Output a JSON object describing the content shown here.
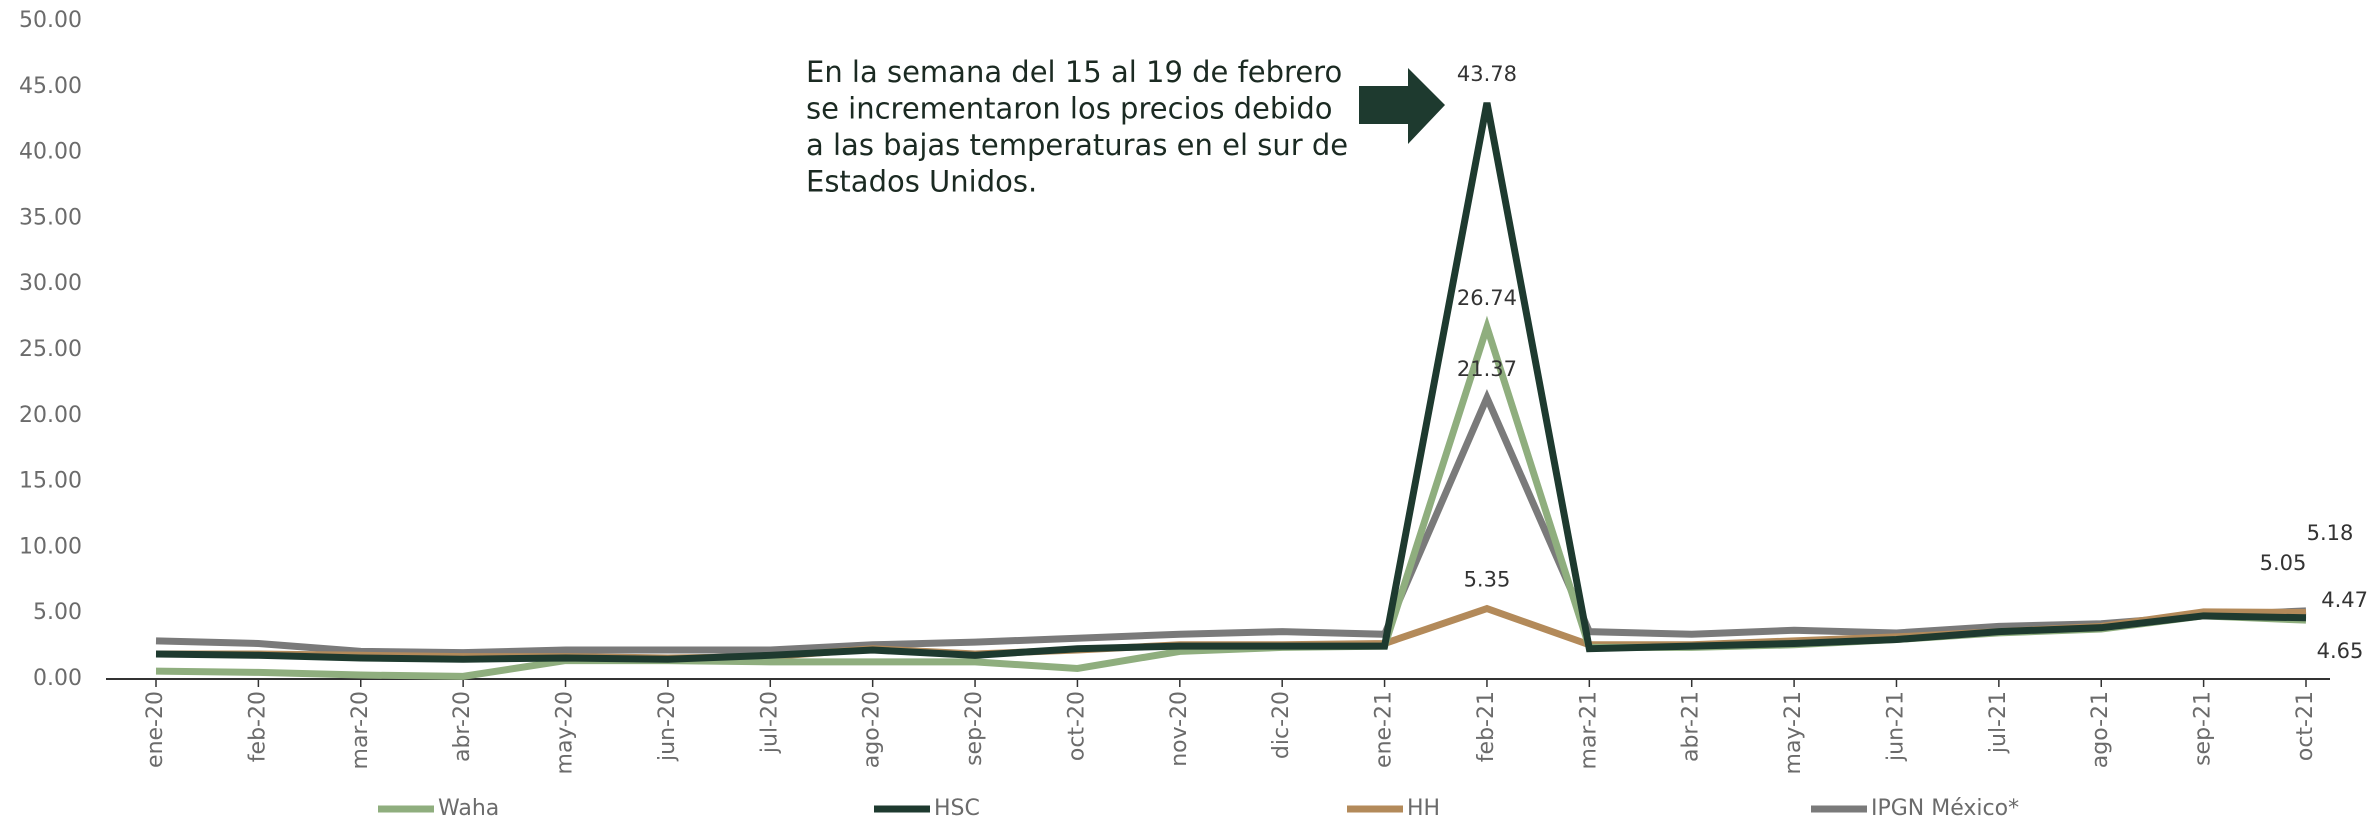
{
  "chart_data": {
    "type": "line",
    "categories": [
      "ene-20",
      "feb-20",
      "mar-20",
      "abr-20",
      "may-20",
      "jun-20",
      "jul-20",
      "ago-20",
      "sep-20",
      "oct-20",
      "nov-20",
      "dic-20",
      "ene-21",
      "feb-21",
      "mar-21",
      "abr-21",
      "may-21",
      "jun-21",
      "jul-21",
      "ago-21",
      "sep-21",
      "oct-21"
    ],
    "series": [
      {
        "name": "Waha",
        "color": "#8fae7e",
        "values": [
          0.6,
          0.5,
          0.3,
          0.2,
          1.4,
          1.4,
          1.3,
          1.3,
          1.3,
          0.8,
          2.1,
          2.4,
          2.5,
          26.74,
          2.4,
          2.4,
          2.6,
          3.0,
          3.5,
          3.8,
          4.8,
          4.47
        ],
        "value_labels": [
          null,
          null,
          null,
          null,
          null,
          null,
          null,
          null,
          null,
          null,
          null,
          null,
          null,
          "26.74",
          null,
          null,
          null,
          null,
          null,
          null,
          null,
          "4.47"
        ]
      },
      {
        "name": "HSC",
        "color": "#1e3a2f",
        "values": [
          1.9,
          1.8,
          1.6,
          1.5,
          1.6,
          1.5,
          1.8,
          2.2,
          1.8,
          2.3,
          2.5,
          2.5,
          2.5,
          43.78,
          2.3,
          2.5,
          2.7,
          3.0,
          3.6,
          3.9,
          4.8,
          4.65
        ],
        "value_labels": [
          null,
          null,
          null,
          null,
          null,
          null,
          null,
          null,
          null,
          null,
          null,
          null,
          null,
          "43.78",
          null,
          null,
          null,
          null,
          null,
          null,
          null,
          "4.65"
        ]
      },
      {
        "name": "HH",
        "color": "#b38a5a",
        "values": [
          1.9,
          1.9,
          1.8,
          1.7,
          1.7,
          1.6,
          1.7,
          2.3,
          1.9,
          2.2,
          2.6,
          2.6,
          2.7,
          5.35,
          2.6,
          2.6,
          2.9,
          3.2,
          3.6,
          4.0,
          5.1,
          5.05
        ],
        "value_labels": [
          null,
          null,
          null,
          null,
          null,
          null,
          null,
          null,
          null,
          null,
          null,
          null,
          null,
          "5.35",
          null,
          null,
          null,
          null,
          null,
          null,
          null,
          "5.05"
        ]
      },
      {
        "name": "IPGN México*",
        "color": "#7a7a7a",
        "values": [
          2.9,
          2.7,
          2.1,
          2.0,
          2.2,
          2.2,
          2.2,
          2.6,
          2.8,
          3.1,
          3.4,
          3.6,
          3.4,
          21.37,
          3.6,
          3.4,
          3.7,
          3.5,
          4.0,
          4.2,
          4.8,
          5.18
        ],
        "value_labels": [
          null,
          null,
          null,
          null,
          null,
          null,
          null,
          null,
          null,
          null,
          null,
          null,
          null,
          "21.37",
          null,
          null,
          null,
          null,
          null,
          null,
          null,
          "5.18"
        ]
      }
    ],
    "ylim": [
      0,
      50
    ],
    "yticks": [
      {
        "value": 0,
        "label": "0.00"
      },
      {
        "value": 5,
        "label": "5.00"
      },
      {
        "value": 10,
        "label": "10.00"
      },
      {
        "value": 15,
        "label": "15.00"
      },
      {
        "value": 20,
        "label": "20.00"
      },
      {
        "value": 25,
        "label": "25.00"
      },
      {
        "value": 30,
        "label": "30.00"
      },
      {
        "value": 35,
        "label": "35.00"
      },
      {
        "value": 40,
        "label": "40.00"
      },
      {
        "value": 45,
        "label": "45.00"
      },
      {
        "value": 50,
        "label": "50.00"
      }
    ],
    "annotation": [
      "En la semana del 15 al 19 de febrero",
      "se incrementaron los precios debido",
      "a las bajas temperaturas en el sur de",
      "Estados Unidos."
    ],
    "legend": "bottom"
  }
}
